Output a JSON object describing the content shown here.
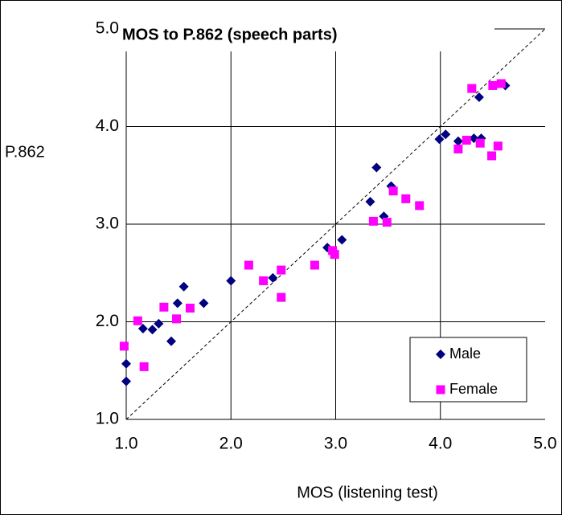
{
  "chart_data": {
    "type": "scatter",
    "title": "MOS to P.862 (speech parts)",
    "x_label": "MOS (listening test)",
    "y_label": "P.862",
    "xlim": [
      1,
      5
    ],
    "ylim": [
      1,
      5
    ],
    "xticks": [
      {
        "value": 1,
        "label": "1.0"
      },
      {
        "value": 2,
        "label": "2.0"
      },
      {
        "value": 3,
        "label": "3.0"
      },
      {
        "value": 4,
        "label": "4.0"
      },
      {
        "value": 5,
        "label": "5.0"
      }
    ],
    "yticks": [
      {
        "value": 1,
        "label": "1.0"
      },
      {
        "value": 2,
        "label": "2.0"
      },
      {
        "value": 3,
        "label": "3.0"
      },
      {
        "value": 4,
        "label": "4.0"
      },
      {
        "value": 5,
        "label": "5.0"
      }
    ],
    "grid": true,
    "legend": "lower right",
    "series": [
      {
        "name": "Male",
        "color": "#000080",
        "marker": "diamond",
        "x": [
          1.0,
          1.0,
          1.16,
          1.25,
          1.31,
          1.43,
          1.49,
          1.55,
          1.74,
          2.0,
          2.4,
          2.92,
          3.06,
          3.33,
          3.39,
          3.46,
          3.53,
          3.99,
          4.05,
          4.17,
          4.32,
          4.39,
          4.37,
          4.62
        ],
        "values": [
          1.57,
          1.39,
          1.93,
          1.92,
          1.98,
          1.8,
          2.19,
          2.36,
          2.19,
          2.42,
          2.45,
          2.76,
          2.84,
          3.23,
          3.58,
          3.08,
          3.39,
          3.87,
          3.92,
          3.85,
          3.88,
          3.88,
          4.3,
          4.42
        ]
      },
      {
        "name": "Female",
        "color": "#ff00ff",
        "marker": "square",
        "x": [
          0.98,
          1.11,
          1.17,
          1.36,
          1.48,
          1.61,
          2.17,
          2.31,
          2.48,
          2.48,
          2.8,
          2.97,
          2.99,
          3.36,
          3.49,
          3.55,
          3.67,
          3.8,
          4.17,
          4.25,
          4.3,
          4.38,
          4.5,
          4.58,
          4.49,
          4.55
        ],
        "values": [
          1.75,
          2.01,
          1.54,
          2.15,
          2.03,
          2.14,
          2.58,
          2.42,
          2.53,
          2.25,
          2.58,
          2.73,
          2.69,
          3.03,
          3.02,
          3.34,
          3.26,
          3.19,
          3.77,
          3.86,
          4.39,
          3.83,
          4.42,
          4.44,
          3.7,
          3.8
        ]
      }
    ]
  }
}
